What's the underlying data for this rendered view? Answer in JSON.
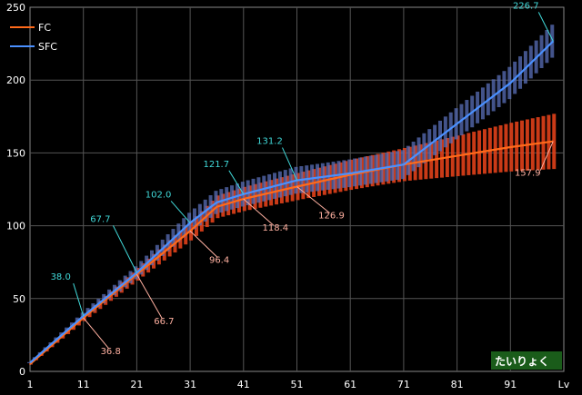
{
  "chart_data": {
    "type": "line",
    "title": "",
    "xlabel": "Lv",
    "ylabel": "",
    "xlim": [
      1,
      101
    ],
    "ylim": [
      0,
      250
    ],
    "grid": true,
    "legend_position": "top-left",
    "x_ticks": [
      "1",
      "11",
      "21",
      "31",
      "41",
      "51",
      "61",
      "71",
      "81",
      "91",
      "Lv"
    ],
    "y_ticks": [
      "0",
      "50",
      "100",
      "150",
      "200",
      "250"
    ],
    "series": [
      {
        "name": "FC",
        "color": "#ff6a1a",
        "points": [
          [
            1,
            5
          ],
          [
            11,
            36.8
          ],
          [
            21,
            66.7
          ],
          [
            31,
            96.4
          ],
          [
            36,
            113
          ],
          [
            41,
            118.4
          ],
          [
            51,
            126.9
          ],
          [
            61,
            135
          ],
          [
            71,
            142
          ],
          [
            81,
            148
          ],
          [
            91,
            154
          ],
          [
            99,
            157.9
          ]
        ]
      },
      {
        "name": "SFC",
        "color": "#4a90ff",
        "points": [
          [
            1,
            6
          ],
          [
            11,
            38.0
          ],
          [
            21,
            67.7
          ],
          [
            31,
            102.0
          ],
          [
            36,
            116
          ],
          [
            41,
            121.7
          ],
          [
            51,
            131.2
          ],
          [
            61,
            136
          ],
          [
            71,
            142
          ],
          [
            81,
            170
          ],
          [
            91,
            198
          ],
          [
            99,
            226.7
          ]
        ]
      }
    ],
    "ranges": {
      "FC": {
        "color": "#e0401a",
        "spread": [
          [
            1,
            0.06
          ],
          [
            41,
            0.07
          ],
          [
            71,
            0.08
          ],
          [
            99,
            0.12
          ]
        ]
      },
      "SFC": {
        "color": "#5a6fb8",
        "spread": [
          [
            1,
            0.06
          ],
          [
            41,
            0.07
          ],
          [
            71,
            0.07
          ],
          [
            99,
            0.05
          ]
        ]
      }
    },
    "annotations": [
      {
        "text": "38.0",
        "x": 11,
        "y": 38.0,
        "series": "SFC",
        "dx": -25,
        "dy": -40,
        "color": "#40d8d8"
      },
      {
        "text": "67.7",
        "x": 21,
        "y": 67.7,
        "series": "SFC",
        "dx": -40,
        "dy": -56,
        "color": "#40d8d8"
      },
      {
        "text": "102.0",
        "x": 31,
        "y": 102.0,
        "series": "SFC",
        "dx": -35,
        "dy": -28,
        "color": "#40d8d8"
      },
      {
        "text": "121.7",
        "x": 41,
        "y": 121.7,
        "series": "SFC",
        "dx": -30,
        "dy": -30,
        "color": "#40d8d8"
      },
      {
        "text": "131.2",
        "x": 51,
        "y": 131.2,
        "series": "SFC",
        "dx": -30,
        "dy": -40,
        "color": "#40d8d8"
      },
      {
        "text": "226.7",
        "x": 99,
        "y": 226.7,
        "series": "SFC",
        "dx": -30,
        "dy": -36,
        "color": "#40d8d8"
      },
      {
        "text": "36.8",
        "x": 11,
        "y": 36.8,
        "series": "FC",
        "dx": 30,
        "dy": 40,
        "color": "#ffb0a0"
      },
      {
        "text": "66.7",
        "x": 21,
        "y": 66.7,
        "series": "FC",
        "dx": 30,
        "dy": 55,
        "color": "#ffb0a0"
      },
      {
        "text": "96.4",
        "x": 31,
        "y": 96.4,
        "series": "FC",
        "dx": 32,
        "dy": 35,
        "color": "#ffb0a0"
      },
      {
        "text": "118.4",
        "x": 41,
        "y": 118.4,
        "series": "FC",
        "dx": 35,
        "dy": 35,
        "color": "#ffb0a0"
      },
      {
        "text": "126.9",
        "x": 51,
        "y": 126.9,
        "series": "FC",
        "dx": 38,
        "dy": 35,
        "color": "#ffb0a0"
      },
      {
        "text": "157.9",
        "x": 99,
        "y": 157.9,
        "series": "FC",
        "dx": -28,
        "dy": 38,
        "color": "#ffb0a0"
      }
    ]
  },
  "badge": {
    "text": "たいりょく",
    "bg": "#1a5c1a"
  }
}
